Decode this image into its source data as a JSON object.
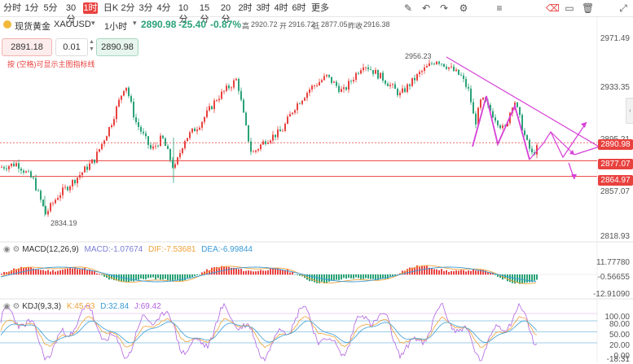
{
  "toolbar": {
    "timeframes": [
      "分时",
      "1分",
      "5分",
      "30分",
      "1时",
      "日K",
      "2分",
      "3分",
      "4分",
      "10分",
      "15分",
      "20分",
      "2时",
      "3时",
      "4时",
      "6时",
      "更多"
    ],
    "active_timeframe": "1时",
    "more_label": "更多",
    "tool_icons": [
      "pencil-icon",
      "undo-icon",
      "redo-icon",
      "settings-icon",
      "lines-icon",
      "eraser-icon",
      "folder-icon",
      "trash-icon",
      "expand-icon"
    ]
  },
  "symbol": {
    "name": "现货黄金",
    "code": "XAUUSD",
    "period": "1小时",
    "price": "2890.98",
    "change": "-25.40",
    "change_pct": "-0.87%",
    "high_label": "高",
    "high": "2920.72",
    "open_label": "开",
    "open": "2916.72",
    "low_label": "低",
    "low": "2877.05",
    "prev_close_label": "昨收",
    "prev_close": "2916.38",
    "hint": "按 (空格)可显示主图指标线"
  },
  "order": {
    "sell_price": "2891.18",
    "lot": "0.01",
    "buy_price": "2890.98"
  },
  "main_axis": {
    "labels": [
      "2971.49",
      "2933.35",
      "2895.21",
      "2857.07",
      "2818.93"
    ],
    "annotations": {
      "high": "2956.23",
      "low": "2834.19"
    },
    "price_tags": [
      {
        "value": "2890.98",
        "color": "#e8423f"
      },
      {
        "value": "2877.07",
        "color": "#e8423f"
      },
      {
        "value": "2864.97",
        "color": "#e8423f"
      }
    ]
  },
  "macd": {
    "title": "MACD(12,26,9)",
    "macd_label": "MACD:",
    "macd": "-1.07674",
    "dif_label": "DIF:",
    "dif": "-7.53681",
    "dea_label": "DEA:",
    "dea": "-6.99844",
    "axis_labels": [
      "11.77780",
      "-0.56655",
      "-12.91090"
    ],
    "colors": {
      "macd": "#7b7fd6",
      "dif": "#f0a23a",
      "dea": "#3a9bd6"
    }
  },
  "kdj": {
    "title": "KDJ(9,3,3)",
    "k_label": "K:",
    "k": "45.03",
    "d_label": "D:",
    "d": "32.84",
    "j_label": "J:",
    "j": "69.42",
    "axis_labels": [
      "100.00",
      "80.00",
      "50.00",
      "20.00",
      "0.00",
      "-18.31"
    ],
    "colors": {
      "k": "#f0a23a",
      "d": "#3a9bd6",
      "j": "#b264e0"
    }
  },
  "colors": {
    "up": "#e8423f",
    "down": "#2aa277",
    "accent": "#e8423f",
    "trend": "#d63fd6"
  }
}
